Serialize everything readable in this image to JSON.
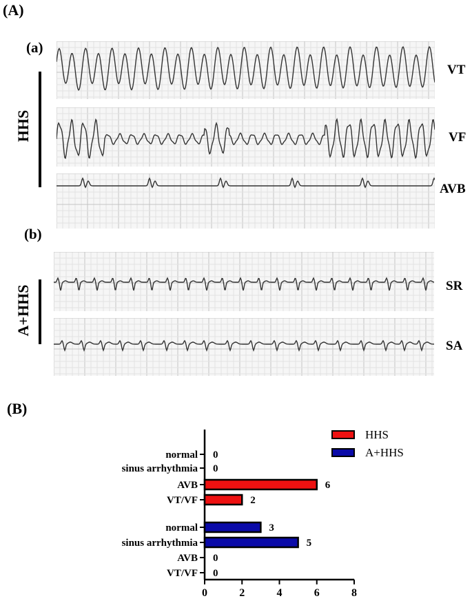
{
  "panel_labels": {
    "A": "(A)",
    "B": "(B)",
    "a": "(a)",
    "b": "(b)"
  },
  "groups": {
    "hhs": "HHS",
    "ahhs": "A+HHS"
  },
  "ecg_traces": [
    {
      "id": "vt",
      "label": "VT"
    },
    {
      "id": "vf",
      "label": "VF"
    },
    {
      "id": "avb",
      "label": "AVB"
    },
    {
      "id": "sr",
      "label": "SR"
    },
    {
      "id": "sa",
      "label": "SA"
    }
  ],
  "colors": {
    "hhs": "#ee1111",
    "ahhs": "#0a0aa8",
    "grid": "#d6d6d6",
    "trace": "#333333"
  },
  "chart_data": {
    "type": "bar",
    "orientation": "horizontal",
    "groups": [
      {
        "series": "HHS",
        "categories": [
          "normal",
          "sinus arrhythmia",
          "AVB",
          "VT/VF"
        ],
        "values": [
          0,
          0,
          6,
          2
        ]
      },
      {
        "series": "A+HHS",
        "categories": [
          "normal",
          "sinus arrhythmia",
          "AVB",
          "VT/VF"
        ],
        "values": [
          3,
          5,
          0,
          0
        ]
      }
    ],
    "legend": [
      "HHS",
      "A+HHS"
    ],
    "legend_position": "top-right",
    "xlim": [
      0,
      8
    ],
    "xticks": [
      "0",
      "2",
      "4",
      "6",
      "8"
    ]
  }
}
